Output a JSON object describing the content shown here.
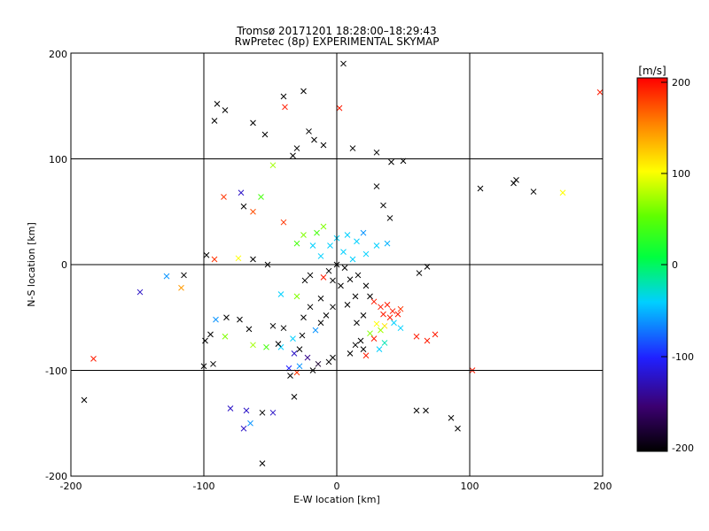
{
  "chart_data": {
    "type": "scatter",
    "title": "Tromsø 20171201 18:28:00–18:29:43",
    "subtitle": "RwPretec (8p) EXPERIMENTAL SKYMAP",
    "xlabel": "E-W location [km]",
    "ylabel": "N-S location [km]",
    "xlim": [
      -200,
      200
    ],
    "ylim": [
      -200,
      200
    ],
    "x_ticks": [
      "-200",
      "-100",
      "0",
      "100",
      "200"
    ],
    "y_ticks": [
      "-200",
      "-100",
      "0",
      "100",
      "200"
    ],
    "grid": "major lines at ±100 and 0",
    "colorbar": {
      "label": "[m/s]",
      "range": [
        -200,
        200
      ],
      "ticks": [
        "200",
        "100",
        "0",
        "-100",
        "-200"
      ],
      "colormap": "rainbow (black → purple → blue → cyan → green → yellow → red)"
    },
    "markers": [
      {
        "x": -90,
        "y": 152,
        "v": -200,
        "m": "x"
      },
      {
        "x": -84,
        "y": 146,
        "v": -200,
        "m": "x"
      },
      {
        "x": -92,
        "y": 136,
        "v": -200,
        "m": "x"
      },
      {
        "x": -63,
        "y": 134,
        "v": -200,
        "m": "x"
      },
      {
        "x": -40,
        "y": 159,
        "v": -200,
        "m": "x"
      },
      {
        "x": -25,
        "y": 164,
        "v": -200,
        "m": "x"
      },
      {
        "x": 5,
        "y": 190,
        "v": -200,
        "m": "x"
      },
      {
        "x": -39,
        "y": 149,
        "v": 190,
        "m": "x"
      },
      {
        "x": 2,
        "y": 148,
        "v": 190,
        "m": "x"
      },
      {
        "x": -30,
        "y": 110,
        "v": -200,
        "m": "x"
      },
      {
        "x": -33,
        "y": 103,
        "v": -200,
        "m": "x"
      },
      {
        "x": -48,
        "y": 94,
        "v": 70,
        "m": "x"
      },
      {
        "x": -17,
        "y": 118,
        "v": -200,
        "m": "x"
      },
      {
        "x": -10,
        "y": 113,
        "v": -200,
        "m": "x"
      },
      {
        "x": 12,
        "y": 110,
        "v": -200,
        "m": "x"
      },
      {
        "x": 30,
        "y": 106,
        "v": -200,
        "m": "x"
      },
      {
        "x": 41,
        "y": 97,
        "v": -200,
        "m": "x"
      },
      {
        "x": 50,
        "y": 98,
        "v": -200,
        "m": "x"
      },
      {
        "x": -54,
        "y": 123,
        "v": -200,
        "m": "x"
      },
      {
        "x": -21,
        "y": 126,
        "v": -200,
        "m": "x"
      },
      {
        "x": -85,
        "y": 64,
        "v": 180,
        "m": "x"
      },
      {
        "x": -72,
        "y": 68,
        "v": -120,
        "m": "x"
      },
      {
        "x": -57,
        "y": 64,
        "v": 40,
        "m": "x"
      },
      {
        "x": -70,
        "y": 55,
        "v": -200,
        "m": "x"
      },
      {
        "x": -63,
        "y": 50,
        "v": 170,
        "m": "x"
      },
      {
        "x": -40,
        "y": 40,
        "v": 180,
        "m": "x"
      },
      {
        "x": 30,
        "y": 74,
        "v": -200,
        "m": "x"
      },
      {
        "x": 35,
        "y": 56,
        "v": -200,
        "m": "x"
      },
      {
        "x": 40,
        "y": 44,
        "v": -200,
        "m": "x"
      },
      {
        "x": 108,
        "y": 72,
        "v": -200,
        "m": "x"
      },
      {
        "x": 133,
        "y": 77,
        "v": -200,
        "m": "x"
      },
      {
        "x": 135,
        "y": 80,
        "v": -200,
        "m": "x"
      },
      {
        "x": 148,
        "y": 69,
        "v": -200,
        "m": "x"
      },
      {
        "x": 170,
        "y": 68,
        "v": 100,
        "m": "x"
      },
      {
        "x": 198,
        "y": 163,
        "v": 190,
        "m": "x"
      },
      {
        "x": -115,
        "y": -10,
        "v": -200,
        "m": "x"
      },
      {
        "x": -128,
        "y": -11,
        "v": -60,
        "m": "x"
      },
      {
        "x": -117,
        "y": -22,
        "v": 140,
        "m": "x"
      },
      {
        "x": -148,
        "y": -26,
        "v": -120,
        "m": "x"
      },
      {
        "x": -98,
        "y": 9,
        "v": -200,
        "m": "x"
      },
      {
        "x": -92,
        "y": 5,
        "v": 180,
        "m": "x"
      },
      {
        "x": -74,
        "y": 6,
        "v": 100,
        "m": "x"
      },
      {
        "x": -63,
        "y": 5,
        "v": -200,
        "m": "x"
      },
      {
        "x": -52,
        "y": 0,
        "v": -200,
        "m": "x"
      },
      {
        "x": -91,
        "y": -52,
        "v": -60,
        "m": "x"
      },
      {
        "x": -83,
        "y": -50,
        "v": -200,
        "m": "x"
      },
      {
        "x": -73,
        "y": -52,
        "v": -200,
        "m": "x"
      },
      {
        "x": -95,
        "y": -66,
        "v": -200,
        "m": "x"
      },
      {
        "x": -99,
        "y": -72,
        "v": -200,
        "m": "x"
      },
      {
        "x": -66,
        "y": -61,
        "v": -200,
        "m": "x"
      },
      {
        "x": -100,
        "y": -96,
        "v": -200,
        "m": "x"
      },
      {
        "x": -93,
        "y": -94,
        "v": -200,
        "m": "x"
      },
      {
        "x": -84,
        "y": -68,
        "v": 60,
        "m": "x"
      },
      {
        "x": -63,
        "y": -76,
        "v": 70,
        "m": "x"
      },
      {
        "x": -53,
        "y": -78,
        "v": 40,
        "m": "x"
      },
      {
        "x": -42,
        "y": -78,
        "v": -40,
        "m": "x"
      },
      {
        "x": -32,
        "y": -84,
        "v": -120,
        "m": "x"
      },
      {
        "x": -22,
        "y": -88,
        "v": -140,
        "m": "x"
      },
      {
        "x": -14,
        "y": -94,
        "v": -180,
        "m": "x"
      },
      {
        "x": -28,
        "y": -96,
        "v": -60,
        "m": "x"
      },
      {
        "x": -36,
        "y": -98,
        "v": -100,
        "m": "x"
      },
      {
        "x": -18,
        "y": -100,
        "v": -200,
        "m": "x"
      },
      {
        "x": -6,
        "y": -92,
        "v": -200,
        "m": "x"
      },
      {
        "x": -3,
        "y": -88,
        "v": -200,
        "m": "x"
      },
      {
        "x": -33,
        "y": -70,
        "v": -40,
        "m": "x"
      },
      {
        "x": -26,
        "y": -67,
        "v": -200,
        "m": "x"
      },
      {
        "x": -16,
        "y": -62,
        "v": -60,
        "m": "x"
      },
      {
        "x": -12,
        "y": -55,
        "v": -200,
        "m": "x"
      },
      {
        "x": -35,
        "y": -105,
        "v": -200,
        "m": "x"
      },
      {
        "x": -30,
        "y": -102,
        "v": 180,
        "m": "x"
      },
      {
        "x": -32,
        "y": -125,
        "v": -200,
        "m": "x"
      },
      {
        "x": -80,
        "y": -136,
        "v": -120,
        "m": "x"
      },
      {
        "x": -68,
        "y": -138,
        "v": -120,
        "m": "x"
      },
      {
        "x": -56,
        "y": -140,
        "v": -200,
        "m": "x"
      },
      {
        "x": -48,
        "y": -140,
        "v": -120,
        "m": "x"
      },
      {
        "x": -70,
        "y": -155,
        "v": -120,
        "m": "x"
      },
      {
        "x": -65,
        "y": -150,
        "v": -60,
        "m": "x"
      },
      {
        "x": -56,
        "y": -188,
        "v": -200,
        "m": "x"
      },
      {
        "x": -190,
        "y": -128,
        "v": -200,
        "m": "x"
      },
      {
        "x": -183,
        "y": -89,
        "v": 190,
        "m": "x"
      },
      {
        "x": -6,
        "y": -6,
        "v": -200,
        "m": "x"
      },
      {
        "x": 0,
        "y": 0,
        "v": -200,
        "m": "x"
      },
      {
        "x": 6,
        "y": -3,
        "v": -200,
        "m": "x"
      },
      {
        "x": -3,
        "y": -15,
        "v": -200,
        "m": "x"
      },
      {
        "x": 3,
        "y": -20,
        "v": -200,
        "m": "x"
      },
      {
        "x": -10,
        "y": -12,
        "v": 190,
        "m": "x"
      },
      {
        "x": 10,
        "y": -14,
        "v": -200,
        "m": "x"
      },
      {
        "x": 16,
        "y": -10,
        "v": -200,
        "m": "x"
      },
      {
        "x": 22,
        "y": -20,
        "v": -200,
        "m": "x"
      },
      {
        "x": 14,
        "y": -30,
        "v": -200,
        "m": "x"
      },
      {
        "x": 8,
        "y": -38,
        "v": -200,
        "m": "x"
      },
      {
        "x": -3,
        "y": -40,
        "v": -200,
        "m": "x"
      },
      {
        "x": -12,
        "y": -32,
        "v": -200,
        "m": "x"
      },
      {
        "x": -20,
        "y": -40,
        "v": -200,
        "m": "x"
      },
      {
        "x": -8,
        "y": -48,
        "v": -200,
        "m": "x"
      },
      {
        "x": 28,
        "y": -35,
        "v": 190,
        "m": "x"
      },
      {
        "x": 33,
        "y": -40,
        "v": 190,
        "m": "x"
      },
      {
        "x": 38,
        "y": -38,
        "v": 190,
        "m": "x"
      },
      {
        "x": 42,
        "y": -44,
        "v": 190,
        "m": "x"
      },
      {
        "x": 46,
        "y": -47,
        "v": 190,
        "m": "x"
      },
      {
        "x": 40,
        "y": -50,
        "v": 190,
        "m": "x"
      },
      {
        "x": 35,
        "y": -47,
        "v": 190,
        "m": "x"
      },
      {
        "x": 48,
        "y": -42,
        "v": 180,
        "m": "x"
      },
      {
        "x": 25,
        "y": -30,
        "v": -200,
        "m": "x"
      },
      {
        "x": 20,
        "y": -48,
        "v": -200,
        "m": "x"
      },
      {
        "x": 15,
        "y": -55,
        "v": -200,
        "m": "x"
      },
      {
        "x": 30,
        "y": -56,
        "v": 100,
        "m": "x"
      },
      {
        "x": 36,
        "y": -58,
        "v": 110,
        "m": "x"
      },
      {
        "x": 33,
        "y": -62,
        "v": 70,
        "m": "x"
      },
      {
        "x": 25,
        "y": -65,
        "v": 60,
        "m": "x"
      },
      {
        "x": 18,
        "y": -72,
        "v": -200,
        "m": "x"
      },
      {
        "x": 14,
        "y": -76,
        "v": -200,
        "m": "x"
      },
      {
        "x": 28,
        "y": -70,
        "v": 190,
        "m": "x"
      },
      {
        "x": 36,
        "y": -74,
        "v": -20,
        "m": "x"
      },
      {
        "x": 32,
        "y": -80,
        "v": -40,
        "m": "x"
      },
      {
        "x": 22,
        "y": -86,
        "v": 190,
        "m": "x"
      },
      {
        "x": 10,
        "y": -84,
        "v": -200,
        "m": "x"
      },
      {
        "x": 20,
        "y": -80,
        "v": -200,
        "m": "x"
      },
      {
        "x": 60,
        "y": -68,
        "v": 190,
        "m": "x"
      },
      {
        "x": 68,
        "y": -72,
        "v": 190,
        "m": "x"
      },
      {
        "x": 74,
        "y": -66,
        "v": 190,
        "m": "x"
      },
      {
        "x": 62,
        "y": -8,
        "v": -200,
        "m": "x"
      },
      {
        "x": 68,
        "y": -2,
        "v": -200,
        "m": "x"
      },
      {
        "x": 102,
        "y": -100,
        "v": 190,
        "m": "x"
      },
      {
        "x": 60,
        "y": -138,
        "v": -200,
        "m": "x"
      },
      {
        "x": 67,
        "y": -138,
        "v": -200,
        "m": "x"
      },
      {
        "x": 86,
        "y": -145,
        "v": -200,
        "m": "x"
      },
      {
        "x": 91,
        "y": -155,
        "v": -200,
        "m": "x"
      },
      {
        "x": -20,
        "y": -10,
        "v": -200,
        "m": "x"
      },
      {
        "x": -24,
        "y": -15,
        "v": -200,
        "m": "x"
      },
      {
        "x": -40,
        "y": -60,
        "v": -200,
        "m": "x"
      },
      {
        "x": -48,
        "y": -58,
        "v": -200,
        "m": "x"
      },
      {
        "x": -44,
        "y": -75,
        "v": -200,
        "m": "x"
      },
      {
        "x": -28,
        "y": -80,
        "v": -200,
        "m": "x"
      },
      {
        "x": -42,
        "y": -28,
        "v": -40,
        "m": "x"
      },
      {
        "x": -30,
        "y": -30,
        "v": 60,
        "m": "x"
      },
      {
        "x": -25,
        "y": -50,
        "v": -200,
        "m": "x"
      },
      {
        "x": -15,
        "y": 30,
        "v": 40,
        "m": "x"
      },
      {
        "x": -10,
        "y": 36,
        "v": 60,
        "m": "x"
      },
      {
        "x": 0,
        "y": 25,
        "v": -40,
        "m": "x"
      },
      {
        "x": 8,
        "y": 28,
        "v": -40,
        "m": "x"
      },
      {
        "x": 15,
        "y": 22,
        "v": -40,
        "m": "x"
      },
      {
        "x": 20,
        "y": 30,
        "v": -60,
        "m": "x"
      },
      {
        "x": -5,
        "y": 18,
        "v": -40,
        "m": "x"
      },
      {
        "x": 5,
        "y": 12,
        "v": -40,
        "m": "x"
      },
      {
        "x": 12,
        "y": 5,
        "v": -40,
        "m": "x"
      },
      {
        "x": 22,
        "y": 10,
        "v": -40,
        "m": "x"
      },
      {
        "x": -12,
        "y": 8,
        "v": -40,
        "m": "x"
      },
      {
        "x": -18,
        "y": 18,
        "v": -40,
        "m": "x"
      },
      {
        "x": 30,
        "y": 18,
        "v": -40,
        "m": "x"
      },
      {
        "x": 38,
        "y": 20,
        "v": -50,
        "m": "x"
      },
      {
        "x": -25,
        "y": 28,
        "v": 60,
        "m": "x"
      },
      {
        "x": -30,
        "y": 20,
        "v": 40,
        "m": "x"
      },
      {
        "x": 48,
        "y": -60,
        "v": -40,
        "m": "x"
      },
      {
        "x": 43,
        "y": -55,
        "v": -40,
        "m": "x"
      }
    ]
  }
}
